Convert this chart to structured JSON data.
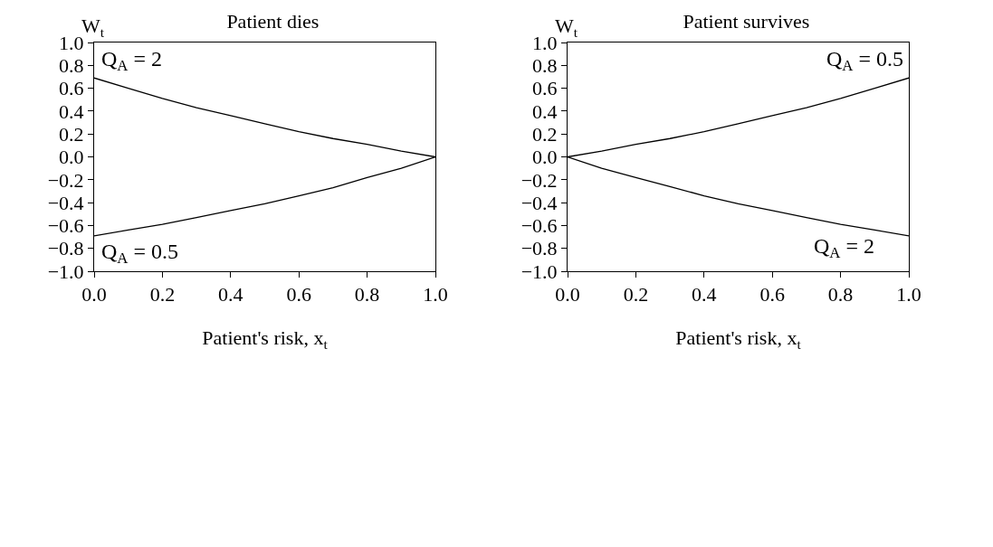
{
  "chart_data": [
    {
      "type": "line",
      "title": "Patient dies",
      "ylabel": "W$_{t}$",
      "xlabel": "Patient's risk, x$_{t}$",
      "x": [
        0,
        0.1,
        0.2,
        0.3,
        0.4,
        0.5,
        0.6,
        0.7,
        0.8,
        0.9,
        1.0
      ],
      "series": [
        {
          "color": "#000000",
          "values": [
            0.69,
            0.6,
            0.51,
            0.43,
            0.36,
            0.29,
            0.22,
            0.16,
            0.11,
            0.05,
            0
          ]
        },
        {
          "color": "#000000",
          "values": [
            -0.69,
            -0.64,
            -0.59,
            -0.53,
            -0.47,
            -0.41,
            -0.34,
            -0.27,
            -0.18,
            -0.1,
            0
          ]
        }
      ],
      "annotations": [
        {
          "text": "Q$_{A}$ = 2",
          "x": 0,
          "y": 0.69
        },
        {
          "text": "Q$_{A}$ = 0.5",
          "x": 0,
          "y": -0.69
        }
      ],
      "xlim": [
        0,
        1
      ],
      "ylim": [
        -1,
        1
      ],
      "xticks": [
        {
          "value": 0,
          "label": "0.0"
        },
        {
          "value": 0.2,
          "label": "0.2"
        },
        {
          "value": 0.4,
          "label": "0.4"
        },
        {
          "value": 0.6,
          "label": "0.6"
        },
        {
          "value": 0.8,
          "label": "0.8"
        },
        {
          "value": 1,
          "label": "1.0"
        }
      ],
      "yticks": [
        {
          "value": -1,
          "label": "−1.0"
        },
        {
          "value": -0.8,
          "label": "−0.8"
        },
        {
          "value": -0.6,
          "label": "−0.6"
        },
        {
          "value": -0.4,
          "label": "−0.4"
        },
        {
          "value": -0.2,
          "label": "−0.2"
        },
        {
          "value": 0,
          "label": "0.0"
        },
        {
          "value": 0.2,
          "label": "0.2"
        },
        {
          "value": 0.4,
          "label": "0.4"
        },
        {
          "value": 0.6,
          "label": "0.6"
        },
        {
          "value": 0.8,
          "label": "0.8"
        },
        {
          "value": 1,
          "label": "1.0"
        }
      ],
      "grid": false,
      "marker": "none",
      "line_style": "solid"
    },
    {
      "type": "line",
      "title": "Patient survives",
      "ylabel": "W$_{t}$",
      "xlabel": "Patient's risk, x$_{t}$",
      "x": [
        0,
        0.1,
        0.2,
        0.3,
        0.4,
        0.5,
        0.6,
        0.7,
        0.8,
        0.9,
        1.0
      ],
      "series": [
        {
          "color": "#000000",
          "values": [
            0,
            0.05,
            0.11,
            0.16,
            0.22,
            0.29,
            0.36,
            0.43,
            0.51,
            0.6,
            0.69
          ]
        },
        {
          "color": "#000000",
          "values": [
            0,
            -0.1,
            -0.18,
            -0.26,
            -0.34,
            -0.41,
            -0.47,
            -0.53,
            -0.59,
            -0.64,
            -0.69
          ]
        }
      ],
      "annotations": [
        {
          "text": "Q$_{A}$ = 0.5",
          "x": 1,
          "y": 0.69
        },
        {
          "text": "Q$_{A}$ = 2",
          "x": 0.7,
          "y": -0.53
        }
      ],
      "xlim": [
        0,
        1
      ],
      "ylim": [
        -1,
        1
      ],
      "xticks": [
        {
          "value": 0,
          "label": "0.0"
        },
        {
          "value": 0.2,
          "label": "0.2"
        },
        {
          "value": 0.4,
          "label": "0.4"
        },
        {
          "value": 0.6,
          "label": "0.6"
        },
        {
          "value": 0.8,
          "label": "0.8"
        },
        {
          "value": 1,
          "label": "1.0"
        }
      ],
      "yticks": [
        {
          "value": -1,
          "label": "−1.0"
        },
        {
          "value": -0.8,
          "label": "−0.8"
        },
        {
          "value": -0.6,
          "label": "−0.6"
        },
        {
          "value": -0.4,
          "label": "−0.4"
        },
        {
          "value": -0.2,
          "label": "−0.2"
        },
        {
          "value": 0,
          "label": "0.0"
        },
        {
          "value": 0.2,
          "label": "0.2"
        },
        {
          "value": 0.4,
          "label": "0.4"
        },
        {
          "value": 0.6,
          "label": "0.6"
        },
        {
          "value": 0.8,
          "label": "0.8"
        },
        {
          "value": 1,
          "label": "1.0"
        }
      ],
      "grid": false,
      "marker": "none",
      "line_style": "solid"
    }
  ]
}
